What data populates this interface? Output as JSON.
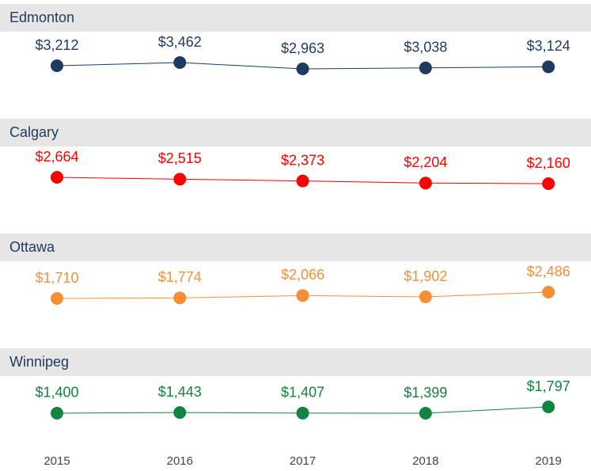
{
  "chart_data": {
    "type": "line",
    "categories": [
      "2015",
      "2016",
      "2017",
      "2018",
      "2019"
    ],
    "series": [
      {
        "name": "Edmonton",
        "color": "#1f3a5f",
        "values": [
          3212,
          3462,
          2963,
          3038,
          3124
        ],
        "value_labels": [
          "$3,212",
          "$3,462",
          "$2,963",
          "$3,038",
          "$3,124"
        ]
      },
      {
        "name": "Calgary",
        "color": "#ff0000",
        "values": [
          2664,
          2515,
          2373,
          2204,
          2160
        ],
        "value_labels": [
          "$2,664",
          "$2,515",
          "$2,373",
          "$2,204",
          "$2,160"
        ]
      },
      {
        "name": "Ottawa",
        "color": "#f58f35",
        "values": [
          1710,
          1774,
          2066,
          1902,
          2486
        ],
        "value_labels": [
          "$1,710",
          "$1,774",
          "$2,066",
          "$1,902",
          "$2,486"
        ]
      },
      {
        "name": "Winnipeg",
        "color": "#11853f",
        "values": [
          1400,
          1443,
          1407,
          1399,
          1797
        ],
        "value_labels": [
          "$1,400",
          "$1,443",
          "$1,407",
          "$1,399",
          "$1,797"
        ]
      }
    ]
  }
}
